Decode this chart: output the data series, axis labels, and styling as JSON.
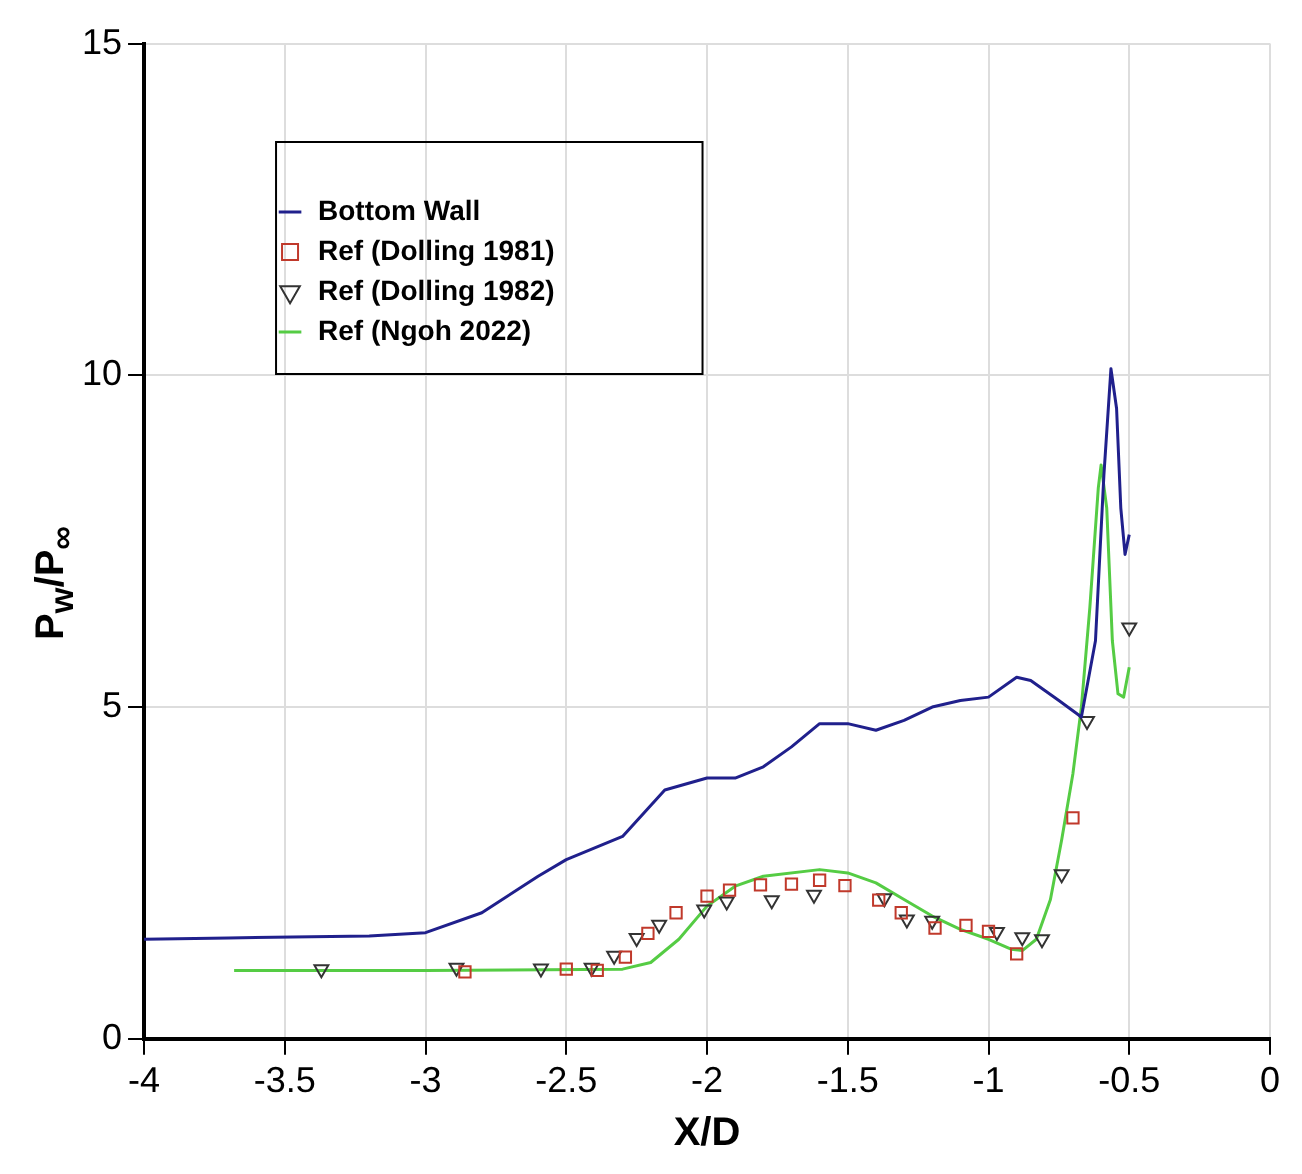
{
  "chart_data": {
    "type": "line",
    "xlabel": "X/D",
    "ylabel": "P$_{w}$/P$_{∞}$",
    "xlim": [
      -4,
      0
    ],
    "xticks": [
      -4,
      -3.5,
      -3,
      -2.5,
      -2,
      -1.5,
      -1,
      -0.5,
      0
    ],
    "ylim": [
      0,
      15
    ],
    "yticks": [
      0,
      5,
      10,
      15
    ],
    "grid": true,
    "legend": "top left",
    "series": [
      {
        "name": "Bottom Wall",
        "type": "line",
        "marker": "none",
        "color": "#20208c",
        "x": [
          -4,
          -3.7,
          -3.2,
          -3,
          -2.8,
          -2.6,
          -2.5,
          -2.3,
          -2.15,
          -2.0,
          -1.9,
          -1.8,
          -1.7,
          -1.6,
          -1.5,
          -1.4,
          -1.3,
          -1.2,
          -1.1,
          -1.0,
          -0.9,
          -0.85,
          -0.75,
          -0.67,
          -0.62,
          -0.59,
          -0.565,
          -0.545,
          -0.53,
          -0.515,
          -0.5
        ],
        "values": [
          1.5,
          1.52,
          1.55,
          1.6,
          1.9,
          2.45,
          2.7,
          3.05,
          3.75,
          3.93,
          3.93,
          4.1,
          4.4,
          4.75,
          4.75,
          4.65,
          4.8,
          5.0,
          5.1,
          5.15,
          5.45,
          5.4,
          5.1,
          4.85,
          6.0,
          8.5,
          10.1,
          9.5,
          8.0,
          7.3,
          7.6
        ]
      },
      {
        "name": "Ref (Dolling 1981)",
        "type": "scatter",
        "marker": "square",
        "color": "#c0392b",
        "x": [
          -2.86,
          -2.5,
          -2.39,
          -2.29,
          -2.21,
          -2.11,
          -2.0,
          -1.92,
          -1.81,
          -1.7,
          -1.6,
          -1.51,
          -1.39,
          -1.31,
          -1.19,
          -1.08,
          -1.0,
          -0.9,
          -0.7
        ],
        "values": [
          1.01,
          1.05,
          1.03,
          1.23,
          1.59,
          1.9,
          2.15,
          2.24,
          2.32,
          2.33,
          2.39,
          2.31,
          2.09,
          1.9,
          1.67,
          1.71,
          1.62,
          1.28,
          3.33
        ]
      },
      {
        "name": "Ref (Dolling 1982)",
        "type": "scatter",
        "marker": "triangle",
        "color": "#333333",
        "x": [
          -3.37,
          -2.89,
          -2.59,
          -2.41,
          -2.33,
          -2.25,
          -2.17,
          -2.01,
          -1.93,
          -1.77,
          -1.62,
          -1.37,
          -1.29,
          -1.2,
          -0.97,
          -0.88,
          -0.81,
          -0.74,
          -0.65,
          -0.5
        ],
        "values": [
          1.05,
          1.07,
          1.06,
          1.07,
          1.25,
          1.52,
          1.72,
          1.95,
          2.07,
          2.09,
          2.17,
          2.12,
          1.8,
          1.78,
          1.61,
          1.53,
          1.5,
          2.48,
          4.79,
          6.2
        ]
      },
      {
        "name": "Ref (Ngoh 2022)",
        "type": "line",
        "marker": "none",
        "color": "#55cc44",
        "x": [
          -3.68,
          -3.0,
          -2.3,
          -2.2,
          -2.1,
          -2.0,
          -1.9,
          -1.8,
          -1.6,
          -1.5,
          -1.4,
          -1.3,
          -1.2,
          -1.1,
          -1.0,
          -0.92,
          -0.88,
          -0.83,
          -0.78,
          -0.74,
          -0.7,
          -0.67,
          -0.64,
          -0.61,
          -0.6,
          -0.58,
          -0.56,
          -0.54,
          -0.52,
          -0.5
        ],
        "values": [
          1.03,
          1.03,
          1.05,
          1.15,
          1.5,
          2.0,
          2.3,
          2.45,
          2.55,
          2.5,
          2.35,
          2.1,
          1.85,
          1.65,
          1.5,
          1.35,
          1.33,
          1.5,
          2.1,
          3.0,
          4.0,
          5.0,
          6.5,
          8.3,
          8.65,
          8.0,
          6.0,
          5.2,
          5.15,
          5.6
        ]
      }
    ]
  }
}
